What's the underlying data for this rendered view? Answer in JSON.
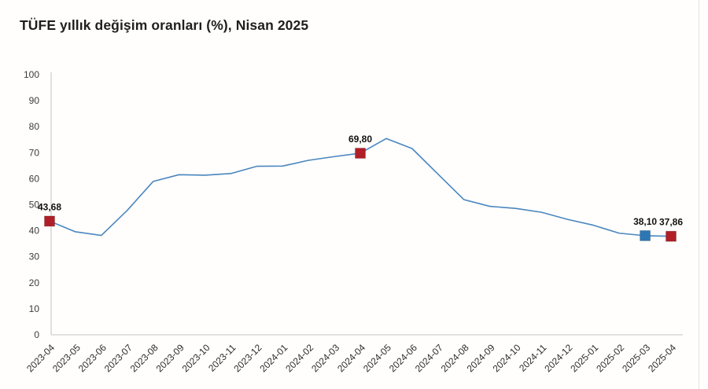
{
  "chart": {
    "title": "TÜFE yıllık değişim oranları (%), Nisan 2025"
  },
  "chart_data": {
    "type": "line",
    "title": "TÜFE yıllık değişim oranları (%), Nisan 2025",
    "xlabel": "",
    "ylabel": "",
    "ylim": [
      0,
      100
    ],
    "y_ticks": [
      0,
      10,
      20,
      30,
      40,
      50,
      60,
      70,
      80,
      90,
      100
    ],
    "grid": false,
    "legend": false,
    "line_color": "#4a86c0",
    "axis_color": "#d0d0ce",
    "categories": [
      "2023-04",
      "2023-05",
      "2023-06",
      "2023-07",
      "2023-08",
      "2023-09",
      "2023-10",
      "2023-11",
      "2023-12",
      "2024-01",
      "2024-02",
      "2024-03",
      "2024-04",
      "2024-05",
      "2024-06",
      "2024-07",
      "2024-08",
      "2024-09",
      "2024-10",
      "2024-11",
      "2024-12",
      "2025-01",
      "2025-02",
      "2025-03",
      "2025-04"
    ],
    "values": [
      43.68,
      39.59,
      38.21,
      47.83,
      58.94,
      61.53,
      61.36,
      61.98,
      64.77,
      64.86,
      67.07,
      68.5,
      69.8,
      75.45,
      71.6,
      61.78,
      51.97,
      49.38,
      48.58,
      47.09,
      44.38,
      42.12,
      39.05,
      38.1,
      37.86
    ],
    "highlight_points": [
      {
        "category": "2023-04",
        "index": 0,
        "label": "43,68",
        "color": "#b01e28"
      },
      {
        "category": "2024-04",
        "index": 12,
        "label": "69,80",
        "color": "#b01e28"
      },
      {
        "category": "2025-03",
        "index": 23,
        "label": "38,10",
        "color": "#2d77b5"
      },
      {
        "category": "2025-04",
        "index": 24,
        "label": "37,86",
        "color": "#b01e28"
      }
    ]
  }
}
